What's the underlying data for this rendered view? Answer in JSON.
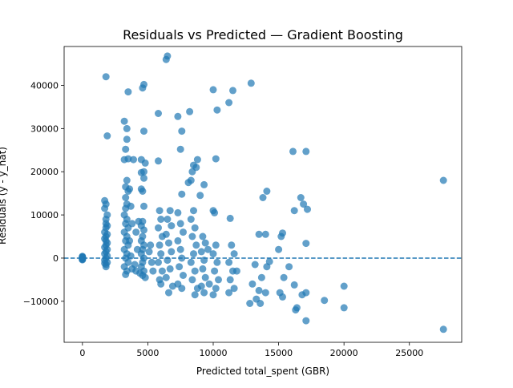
{
  "chart_data": {
    "type": "scatter",
    "title": "Residuals vs Predicted — Gradient Boosting",
    "xlabel": "Predicted total_spent (GBR)",
    "ylabel": "Residuals (y - y_hat)",
    "xlim": [
      -1400,
      29000
    ],
    "ylim": [
      -19500,
      49000
    ],
    "xticks": [
      0,
      5000,
      10000,
      15000,
      20000,
      25000
    ],
    "xtick_labels": [
      "0",
      "5000",
      "10000",
      "15000",
      "20000",
      "25000"
    ],
    "yticks": [
      -10000,
      0,
      10000,
      20000,
      30000,
      40000
    ],
    "ytick_labels": [
      "−10000",
      "0",
      "10000",
      "20000",
      "30000",
      "40000"
    ],
    "reference_line": {
      "y": 0,
      "style": "dashed"
    },
    "grid": false,
    "legend": "none",
    "colors": {
      "points": "#1f77b4",
      "line": "#1f77b4"
    },
    "points": [
      [
        0,
        0
      ],
      [
        0,
        -200
      ],
      [
        0,
        200
      ],
      [
        0,
        -400
      ],
      [
        0,
        400
      ],
      [
        0,
        -100
      ],
      [
        0,
        100
      ],
      [
        0,
        -300
      ],
      [
        0,
        300
      ],
      [
        0,
        0
      ],
      [
        1800,
        42000
      ],
      [
        1900,
        28300
      ],
      [
        1700,
        13300
      ],
      [
        1800,
        12500
      ],
      [
        1700,
        11500
      ],
      [
        1900,
        10000
      ],
      [
        1800,
        9000
      ],
      [
        1800,
        8000
      ],
      [
        1900,
        7500
      ],
      [
        1800,
        7000
      ],
      [
        1700,
        6000
      ],
      [
        1900,
        5500
      ],
      [
        1800,
        5000
      ],
      [
        1700,
        4500
      ],
      [
        1800,
        4000
      ],
      [
        1900,
        3500
      ],
      [
        1800,
        3000
      ],
      [
        1700,
        2500
      ],
      [
        1900,
        2000
      ],
      [
        1800,
        1500
      ],
      [
        1700,
        1000
      ],
      [
        1900,
        500
      ],
      [
        1800,
        0
      ],
      [
        1700,
        -500
      ],
      [
        1900,
        -1000
      ],
      [
        1800,
        -1500
      ],
      [
        1800,
        -2000
      ],
      [
        1700,
        -1200
      ],
      [
        3200,
        31700
      ],
      [
        3400,
        30000
      ],
      [
        3500,
        38500
      ],
      [
        3400,
        27500
      ],
      [
        3300,
        25200
      ],
      [
        3500,
        23000
      ],
      [
        3200,
        22800
      ],
      [
        3400,
        18000
      ],
      [
        3300,
        16500
      ],
      [
        3500,
        15500
      ],
      [
        3300,
        14000
      ],
      [
        3400,
        12500
      ],
      [
        3300,
        11500
      ],
      [
        3200,
        10000
      ],
      [
        3400,
        9000
      ],
      [
        3300,
        8000
      ],
      [
        3500,
        7000
      ],
      [
        3200,
        6000
      ],
      [
        3400,
        5000
      ],
      [
        3300,
        4000
      ],
      [
        3500,
        3000
      ],
      [
        3200,
        2000
      ],
      [
        3400,
        1000
      ],
      [
        3300,
        0
      ],
      [
        3500,
        -1000
      ],
      [
        3200,
        -2000
      ],
      [
        3400,
        -3000
      ],
      [
        3300,
        -3800
      ],
      [
        3600,
        16000
      ],
      [
        3700,
        12000
      ],
      [
        3800,
        8000
      ],
      [
        3600,
        4000
      ],
      [
        3700,
        500
      ],
      [
        3800,
        -2500
      ],
      [
        3900,
        22800
      ],
      [
        4100,
        6000
      ],
      [
        4200,
        2000
      ],
      [
        4000,
        -1500
      ],
      [
        4100,
        -3000
      ],
      [
        4300,
        8500
      ],
      [
        4700,
        40200
      ],
      [
        4600,
        39400
      ],
      [
        4700,
        29400
      ],
      [
        4500,
        22800
      ],
      [
        4800,
        22000
      ],
      [
        4700,
        20000
      ],
      [
        4500,
        19800
      ],
      [
        4700,
        18500
      ],
      [
        4500,
        16000
      ],
      [
        4600,
        15500
      ],
      [
        4700,
        12000
      ],
      [
        4600,
        8500
      ],
      [
        4500,
        7500
      ],
      [
        4700,
        6500
      ],
      [
        4600,
        5000
      ],
      [
        4500,
        4000
      ],
      [
        4700,
        3000
      ],
      [
        4600,
        2000
      ],
      [
        4500,
        1000
      ],
      [
        4700,
        0
      ],
      [
        4600,
        -1000
      ],
      [
        4500,
        -2000
      ],
      [
        4700,
        -3000
      ],
      [
        4600,
        -4000
      ],
      [
        4800,
        -4500
      ],
      [
        4400,
        -3500
      ],
      [
        5200,
        3000
      ],
      [
        5300,
        -1000
      ],
      [
        5100,
        1500
      ],
      [
        5400,
        -3000
      ],
      [
        5800,
        33500
      ],
      [
        5800,
        22500
      ],
      [
        5900,
        11000
      ],
      [
        6000,
        9000
      ],
      [
        5800,
        7000
      ],
      [
        6100,
        5000
      ],
      [
        5900,
        3000
      ],
      [
        6000,
        1000
      ],
      [
        5800,
        -1000
      ],
      [
        6100,
        -3000
      ],
      [
        5900,
        -5000
      ],
      [
        6000,
        -6000
      ],
      [
        6500,
        46800
      ],
      [
        6400,
        46000
      ],
      [
        6700,
        11000
      ],
      [
        6500,
        9000
      ],
      [
        6800,
        7500
      ],
      [
        6400,
        5500
      ],
      [
        6600,
        3500
      ],
      [
        6800,
        1500
      ],
      [
        6500,
        -500
      ],
      [
        6700,
        -2500
      ],
      [
        6400,
        -4500
      ],
      [
        6900,
        -6500
      ],
      [
        6600,
        -8000
      ],
      [
        7300,
        32800
      ],
      [
        7600,
        29400
      ],
      [
        7500,
        25200
      ],
      [
        7600,
        14800
      ],
      [
        7300,
        10500
      ],
      [
        7500,
        8000
      ],
      [
        7700,
        6000
      ],
      [
        7300,
        4000
      ],
      [
        7500,
        2000
      ],
      [
        7600,
        0
      ],
      [
        7400,
        -2000
      ],
      [
        7700,
        -4000
      ],
      [
        7300,
        -6000
      ],
      [
        7600,
        -7000
      ],
      [
        8200,
        33900
      ],
      [
        8100,
        17500
      ],
      [
        8300,
        18000
      ],
      [
        8500,
        21500
      ],
      [
        8700,
        21000
      ],
      [
        8400,
        20000
      ],
      [
        8800,
        22800
      ],
      [
        8500,
        11000
      ],
      [
        8300,
        9000
      ],
      [
        8600,
        7000
      ],
      [
        8400,
        5000
      ],
      [
        8700,
        3000
      ],
      [
        8500,
        1000
      ],
      [
        8300,
        -1000
      ],
      [
        8600,
        -3000
      ],
      [
        8400,
        -5000
      ],
      [
        8800,
        -7000
      ],
      [
        8600,
        -8500
      ],
      [
        9000,
        14500
      ],
      [
        9300,
        17000
      ],
      [
        9200,
        5000
      ],
      [
        9400,
        3500
      ],
      [
        9100,
        1500
      ],
      [
        9300,
        -500
      ],
      [
        9200,
        -2500
      ],
      [
        9400,
        -4500
      ],
      [
        9100,
        -6500
      ],
      [
        9300,
        -8000
      ],
      [
        9600,
        2000
      ],
      [
        9700,
        -6000
      ],
      [
        10000,
        39000
      ],
      [
        10300,
        34300
      ],
      [
        10200,
        23000
      ],
      [
        10000,
        11000
      ],
      [
        10100,
        10500
      ],
      [
        10200,
        3000
      ],
      [
        10000,
        1000
      ],
      [
        10300,
        -1000
      ],
      [
        10100,
        -3000
      ],
      [
        10400,
        -5000
      ],
      [
        10200,
        -7000
      ],
      [
        10000,
        -8500
      ],
      [
        11200,
        36000
      ],
      [
        11500,
        38800
      ],
      [
        11300,
        9200
      ],
      [
        11400,
        3000
      ],
      [
        11600,
        1000
      ],
      [
        11200,
        -1000
      ],
      [
        11500,
        -3000
      ],
      [
        11300,
        -5000
      ],
      [
        11600,
        -7000
      ],
      [
        11200,
        -8000
      ],
      [
        11800,
        -3000
      ],
      [
        12900,
        40500
      ],
      [
        13000,
        -6000
      ],
      [
        12800,
        -10500
      ],
      [
        13200,
        -1500
      ],
      [
        13500,
        5500
      ],
      [
        13800,
        14000
      ],
      [
        14100,
        15500
      ],
      [
        14000,
        5500
      ],
      [
        13700,
        -4500
      ],
      [
        13500,
        -7500
      ],
      [
        13300,
        -9500
      ],
      [
        13600,
        -10500
      ],
      [
        14000,
        -8000
      ],
      [
        14100,
        -2000
      ],
      [
        14300,
        -800
      ],
      [
        15000,
        2000
      ],
      [
        15200,
        5000
      ],
      [
        15300,
        5800
      ],
      [
        15100,
        -8000
      ],
      [
        15300,
        -9000
      ],
      [
        15400,
        -4500
      ],
      [
        15800,
        -2000
      ],
      [
        16100,
        24700
      ],
      [
        16200,
        11000
      ],
      [
        16200,
        -6200
      ],
      [
        16400,
        -11500
      ],
      [
        16300,
        -12000
      ],
      [
        16700,
        14000
      ],
      [
        16900,
        12500
      ],
      [
        16800,
        -8500
      ],
      [
        17100,
        24700
      ],
      [
        17200,
        11300
      ],
      [
        17100,
        3400
      ],
      [
        17100,
        -8000
      ],
      [
        17100,
        -14500
      ],
      [
        18500,
        -9800
      ],
      [
        20000,
        -6500
      ],
      [
        20000,
        -11500
      ],
      [
        27600,
        18000
      ],
      [
        27600,
        -16500
      ]
    ]
  }
}
